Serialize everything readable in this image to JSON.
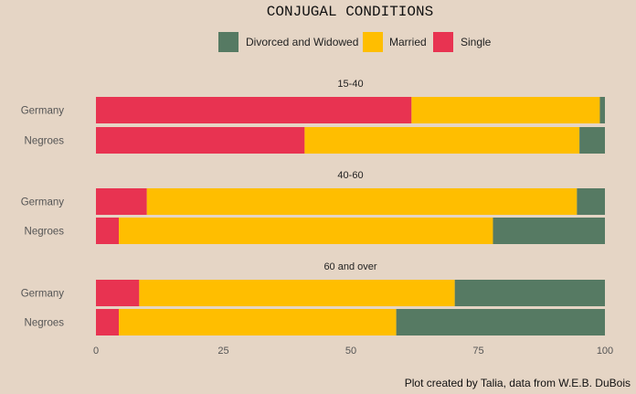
{
  "chart_data": {
    "type": "bar",
    "orientation": "horizontal",
    "stacked": true,
    "title": "CONJUGAL CONDITIONS",
    "caption": "Plot created by Talia, data from W.E.B. DuBois",
    "legend": {
      "placement": "top",
      "items": [
        {
          "name": "Divorced and Widowed",
          "color": "#567a63"
        },
        {
          "name": "Married",
          "color": "#ffbe00"
        },
        {
          "name": "Single",
          "color": "#e83351"
        }
      ]
    },
    "x_ticks": [
      "0",
      "25",
      "50",
      "75",
      "100"
    ],
    "xlim": [
      0,
      100
    ],
    "grid": false,
    "stack_order": [
      "Single",
      "Married",
      "Divorced and Widowed"
    ],
    "facets": [
      {
        "label": "15-40",
        "rows": [
          {
            "category": "Germany",
            "values": {
              "Single": 62,
              "Married": 37,
              "Divorced and Widowed": 1
            }
          },
          {
            "category": "Negroes",
            "values": {
              "Single": 41,
              "Married": 54,
              "Divorced and Widowed": 5
            }
          }
        ]
      },
      {
        "label": "40-60",
        "rows": [
          {
            "category": "Germany",
            "values": {
              "Single": 10,
              "Married": 84.5,
              "Divorced and Widowed": 5.5
            }
          },
          {
            "category": "Negroes",
            "values": {
              "Single": 4.5,
              "Married": 73.5,
              "Divorced and Widowed": 22
            }
          }
        ]
      },
      {
        "label": "60 and over",
        "rows": [
          {
            "category": "Germany",
            "values": {
              "Single": 8.5,
              "Married": 62,
              "Divorced and Widowed": 29.5
            }
          },
          {
            "category": "Negroes",
            "values": {
              "Single": 4.5,
              "Married": 54.5,
              "Divorced and Widowed": 41
            }
          }
        ]
      }
    ]
  }
}
